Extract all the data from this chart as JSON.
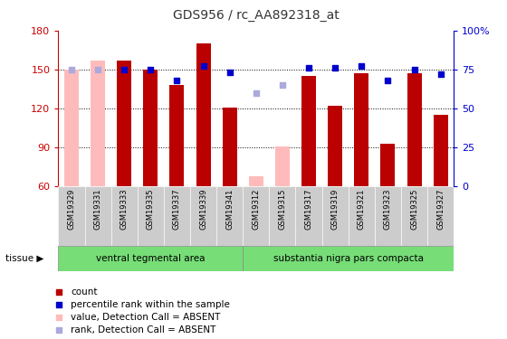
{
  "title": "GDS956 / rc_AA892318_at",
  "samples": [
    "GSM19329",
    "GSM19331",
    "GSM19333",
    "GSM19335",
    "GSM19337",
    "GSM19339",
    "GSM19341",
    "GSM19312",
    "GSM19315",
    "GSM19317",
    "GSM19319",
    "GSM19321",
    "GSM19323",
    "GSM19325",
    "GSM19327"
  ],
  "bar_values": [
    150,
    157,
    157,
    150,
    138,
    170,
    121,
    68,
    91,
    145,
    122,
    147,
    93,
    147,
    115
  ],
  "bar_absent": [
    true,
    true,
    false,
    false,
    false,
    false,
    false,
    true,
    true,
    false,
    false,
    false,
    false,
    false,
    false
  ],
  "rank_values": [
    75,
    75,
    75,
    75,
    68,
    77,
    73,
    60,
    65,
    76,
    76,
    77,
    68,
    75,
    72
  ],
  "rank_absent": [
    true,
    true,
    false,
    false,
    false,
    false,
    false,
    true,
    true,
    false,
    false,
    false,
    false,
    false,
    false
  ],
  "group1_label": "ventral tegmental area",
  "group2_label": "substantia nigra pars compacta",
  "group1_count": 7,
  "group2_count": 8,
  "ylim_left": [
    60,
    180
  ],
  "ylim_right": [
    0,
    100
  ],
  "yticks_left": [
    60,
    90,
    120,
    150,
    180
  ],
  "yticks_right": [
    0,
    25,
    50,
    75,
    100
  ],
  "bar_color_present": "#bb0000",
  "bar_color_absent": "#ffbbbb",
  "dot_color_present": "#0000cc",
  "dot_color_absent": "#aaaadd",
  "left_axis_color": "#cc0000",
  "right_axis_color": "#0000cc",
  "grid_color": "#000000",
  "bg_color": "#ffffff",
  "tissue_bg": "#77dd77",
  "xtick_bg": "#cccccc"
}
